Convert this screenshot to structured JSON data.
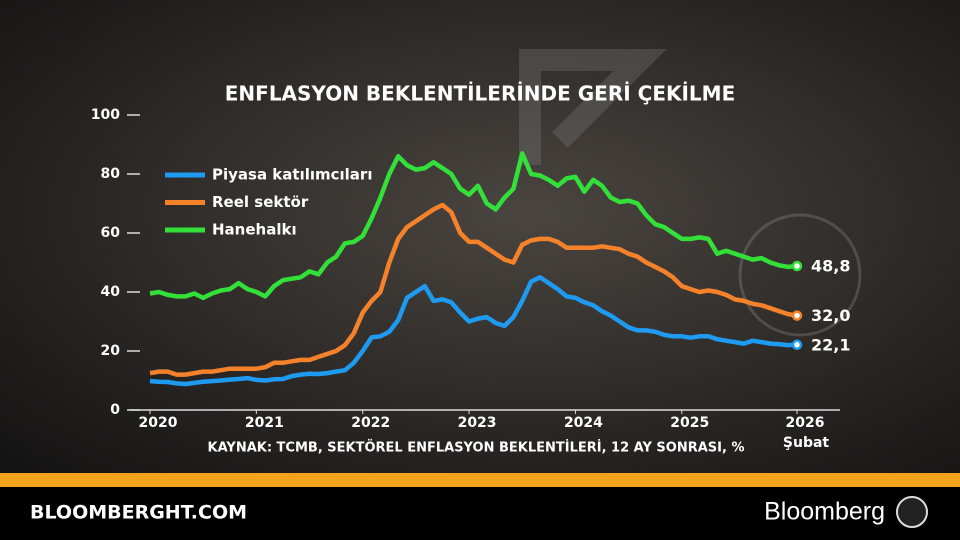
{
  "chart_data": {
    "type": "line",
    "title": "ENFLASYON BEKLENTİLERİNDE GERİ ÇEKİLME",
    "source": "KAYNAK: TCMB, SEKTÖREL ENFLASYON BEKLENTİLERİ, 12 AY SONRASI, %",
    "x_end_note": "Şubat",
    "watermark": "Bloomberg",
    "x": [
      "2020-01",
      "2020-02",
      "2020-03",
      "2020-04",
      "2020-05",
      "2020-06",
      "2020-07",
      "2020-08",
      "2020-09",
      "2020-10",
      "2020-11",
      "2020-12",
      "2021-01",
      "2021-02",
      "2021-03",
      "2021-04",
      "2021-05",
      "2021-06",
      "2021-07",
      "2021-08",
      "2021-09",
      "2021-10",
      "2021-11",
      "2021-12",
      "2022-01",
      "2022-02",
      "2022-03",
      "2022-04",
      "2022-05",
      "2022-06",
      "2022-07",
      "2022-08",
      "2022-09",
      "2022-10",
      "2022-11",
      "2022-12",
      "2023-01",
      "2023-02",
      "2023-03",
      "2023-04",
      "2023-05",
      "2023-06",
      "2023-07",
      "2023-08",
      "2023-09",
      "2023-10",
      "2023-11",
      "2023-12",
      "2024-01",
      "2024-02",
      "2024-03",
      "2024-04",
      "2024-05",
      "2024-06",
      "2024-07",
      "2024-08",
      "2024-09",
      "2024-10",
      "2024-11",
      "2024-12",
      "2025-01",
      "2025-02",
      "2025-03",
      "2025-04",
      "2025-05",
      "2025-06",
      "2025-07",
      "2025-08",
      "2025-09",
      "2025-10",
      "2025-11",
      "2025-12",
      "2026-01",
      "2026-02"
    ],
    "xticks": [
      {
        "value": "2020-01",
        "label": "2020"
      },
      {
        "value": "2021-01",
        "label": "2021"
      },
      {
        "value": "2022-01",
        "label": "2022"
      },
      {
        "value": "2023-01",
        "label": "2023"
      },
      {
        "value": "2024-01",
        "label": "2024"
      },
      {
        "value": "2025-01",
        "label": "2025"
      },
      {
        "value": "2026-02",
        "label": "2026"
      }
    ],
    "ylim": [
      0,
      100
    ],
    "yticks": [
      0,
      20,
      40,
      60,
      80,
      100
    ],
    "series": [
      {
        "name": "Piyasa katılımcıları",
        "color": "#1e9bf0",
        "end_label": "22,1",
        "values": [
          9.8,
          9.6,
          9.5,
          9.0,
          8.8,
          9.2,
          9.6,
          9.8,
          10.0,
          10.3,
          10.5,
          10.8,
          10.2,
          10.0,
          10.4,
          10.5,
          11.5,
          12.0,
          12.3,
          12.2,
          12.5,
          13.0,
          13.5,
          16.0,
          20.0,
          24.6,
          25.0,
          26.5,
          30.5,
          38.0,
          40.0,
          42.0,
          37.0,
          37.5,
          36.5,
          33.0,
          30.0,
          31.0,
          31.5,
          29.5,
          28.5,
          31.5,
          37.0,
          43.5,
          45.0,
          43.0,
          41.0,
          38.5,
          38.0,
          36.5,
          35.5,
          33.5,
          32.0,
          30.0,
          28.0,
          27.0,
          27.0,
          26.5,
          25.5,
          25.0,
          25.0,
          24.5,
          25.0,
          25.0,
          24.0,
          23.5,
          23.0,
          22.5,
          23.5,
          23.0,
          22.5,
          22.3,
          22.0,
          22.1
        ]
      },
      {
        "name": "Reel sektör",
        "color": "#f5822a",
        "end_label": "32,0",
        "values": [
          12.5,
          13.0,
          13.0,
          12.0,
          12.0,
          12.5,
          13.0,
          13.0,
          13.5,
          14.0,
          14.0,
          14.0,
          14.0,
          14.5,
          16.0,
          16.0,
          16.5,
          17.0,
          17.0,
          18.0,
          19.0,
          20.0,
          22.0,
          26.0,
          33.0,
          37.0,
          40.0,
          50.0,
          58.0,
          62.0,
          64.0,
          66.0,
          68.0,
          69.5,
          67.0,
          60.0,
          57.0,
          57.0,
          55.0,
          53.0,
          51.0,
          50.0,
          56.0,
          57.5,
          58.0,
          58.0,
          57.0,
          55.0,
          55.0,
          55.0,
          55.0,
          55.5,
          55.0,
          54.5,
          53.0,
          52.0,
          50.0,
          48.5,
          47.0,
          45.0,
          42.0,
          41.0,
          40.0,
          40.5,
          40.0,
          39.0,
          37.5,
          37.0,
          36.0,
          35.5,
          34.5,
          33.5,
          32.5,
          32.0
        ]
      },
      {
        "name": "Hanehalkı",
        "color": "#33e03a",
        "end_label": "48,8",
        "values": [
          39.5,
          40.0,
          39.0,
          38.5,
          38.5,
          39.5,
          38.0,
          39.5,
          40.5,
          41.0,
          43.0,
          41.0,
          40.0,
          38.5,
          42.0,
          44.0,
          44.5,
          45.0,
          47.0,
          46.0,
          50.0,
          52.0,
          56.5,
          57.0,
          59.0,
          65.0,
          72.0,
          80.0,
          86.0,
          83.0,
          81.5,
          82.0,
          84.0,
          82.0,
          80.0,
          75.0,
          73.0,
          76.0,
          70.0,
          68.0,
          72.0,
          75.0,
          87.0,
          80.0,
          79.5,
          78.0,
          76.0,
          78.5,
          79.0,
          74.0,
          78.0,
          76.0,
          72.0,
          70.5,
          71.0,
          70.0,
          66.0,
          63.0,
          62.0,
          60.0,
          58.0,
          58.0,
          58.5,
          58.0,
          53.0,
          54.0,
          53.0,
          52.0,
          51.0,
          51.5,
          50.0,
          49.0,
          48.5,
          48.8
        ]
      }
    ]
  },
  "footer": {
    "site": "BLOOMBERGHT.COM",
    "brand": "Bloomberg"
  }
}
